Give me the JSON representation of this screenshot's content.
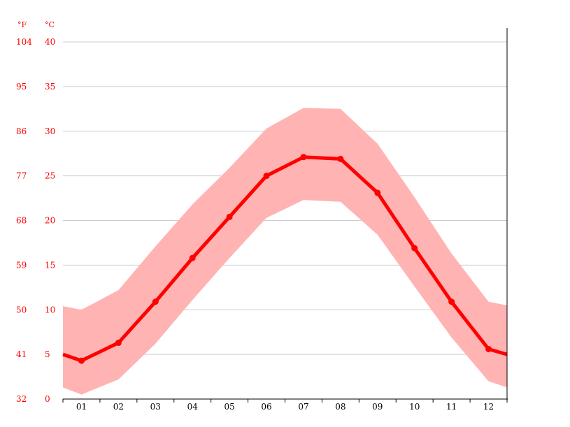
{
  "chart_data": {
    "type": "line",
    "title": "",
    "xlabel": "",
    "ylabel": "",
    "units": {
      "fahrenheit": "°F",
      "celsius": "°C"
    },
    "categories": [
      "01",
      "02",
      "03",
      "04",
      "05",
      "06",
      "07",
      "08",
      "09",
      "10",
      "11",
      "12"
    ],
    "y_ticks_celsius": [
      "0",
      "5",
      "10",
      "15",
      "20",
      "25",
      "30",
      "35",
      "40"
    ],
    "y_ticks_fahrenheit": [
      "32",
      "41",
      "50",
      "59",
      "68",
      "77",
      "86",
      "95",
      "104"
    ],
    "ylim": [
      0,
      40
    ],
    "grid": true,
    "series": [
      {
        "role": "mean",
        "values": [
          4.3,
          6.3,
          10.9,
          15.8,
          20.4,
          25.0,
          27.1,
          26.9,
          23.1,
          16.9,
          10.9,
          5.6
        ]
      },
      {
        "role": "max",
        "values": [
          10.0,
          12.2,
          17.1,
          21.8,
          25.9,
          30.3,
          32.6,
          32.5,
          28.6,
          22.6,
          16.3,
          10.9
        ]
      },
      {
        "role": "min",
        "values": [
          0.5,
          2.2,
          6.2,
          11.1,
          15.8,
          20.3,
          22.3,
          22.1,
          18.4,
          12.6,
          6.9,
          2.0
        ]
      }
    ],
    "edge_values": {
      "mean": [
        5.0,
        5.0
      ],
      "max": [
        10.4,
        10.5
      ],
      "min": [
        1.3,
        1.3
      ]
    },
    "colors": {
      "line": "#ff0000",
      "band": "#ffb3b3",
      "grid": "#cccccc",
      "axis": "#000000",
      "y_tick_text": "#ff0000",
      "x_tick_text": "#000000"
    }
  }
}
